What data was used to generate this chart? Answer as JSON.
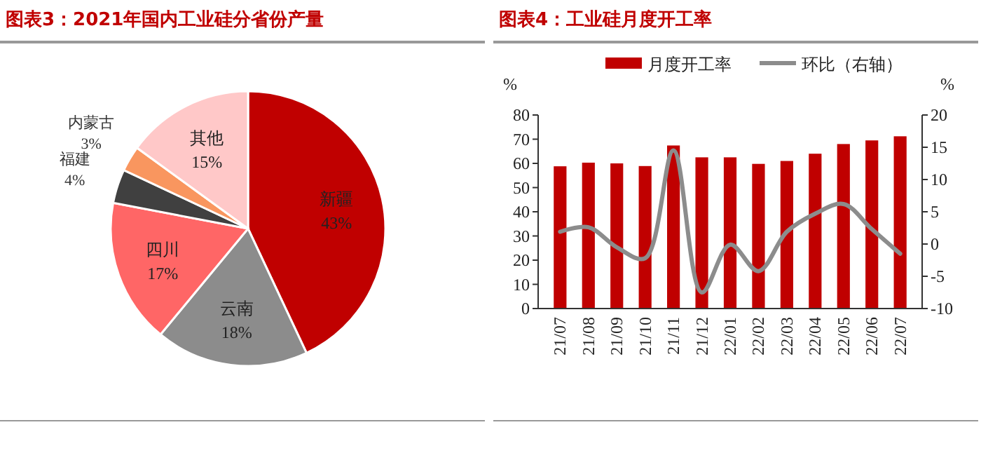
{
  "chart_data": [
    {
      "type": "pie",
      "title": "图表3：2021年国内工业硅分省份产量",
      "categories": [
        "新疆",
        "云南",
        "四川",
        "福建",
        "内蒙古",
        "其他"
      ],
      "values": [
        43,
        18,
        17,
        4,
        3,
        15
      ],
      "colors": [
        "#c00000",
        "#8c8c8c",
        "#ff6666",
        "#404040",
        "#f9965f",
        "#ffc8c8"
      ],
      "value_labels": [
        "43%",
        "18%",
        "17%",
        "4%",
        "3%",
        "15%"
      ]
    },
    {
      "type": "bar",
      "title": "图表4：工业硅月度开工率",
      "categories": [
        "21/07",
        "21/08",
        "21/09",
        "21/10",
        "21/11",
        "21/12",
        "22/01",
        "22/02",
        "22/03",
        "22/04",
        "22/05",
        "22/06",
        "22/07"
      ],
      "ylabel": "%",
      "y2label": "%",
      "ylim": [
        0,
        80
      ],
      "yticks": [
        0,
        10,
        20,
        30,
        40,
        50,
        60,
        70,
        80
      ],
      "y2lim": [
        -10,
        20
      ],
      "y2ticks": [
        -10,
        -5,
        0,
        5,
        10,
        15,
        20
      ],
      "legend": "top",
      "grid": false,
      "series": [
        {
          "name": "月度开工率",
          "type": "bar",
          "color": "#c00000",
          "values": [
            58.8,
            60.3,
            60,
            58.9,
            67.4,
            62.5,
            62.5,
            59.8,
            61,
            64,
            68,
            69.5,
            71.2
          ]
        },
        {
          "name": "环比（右轴）",
          "type": "line",
          "axis": "y2",
          "color": "#8c8c8c",
          "line_style": "solid",
          "values": [
            1.9,
            2.6,
            -0.5,
            -2.2,
            14.5,
            -7.5,
            -0.1,
            -4.2,
            1.9,
            4.7,
            6.2,
            2.3,
            -1.5
          ]
        }
      ]
    }
  ]
}
